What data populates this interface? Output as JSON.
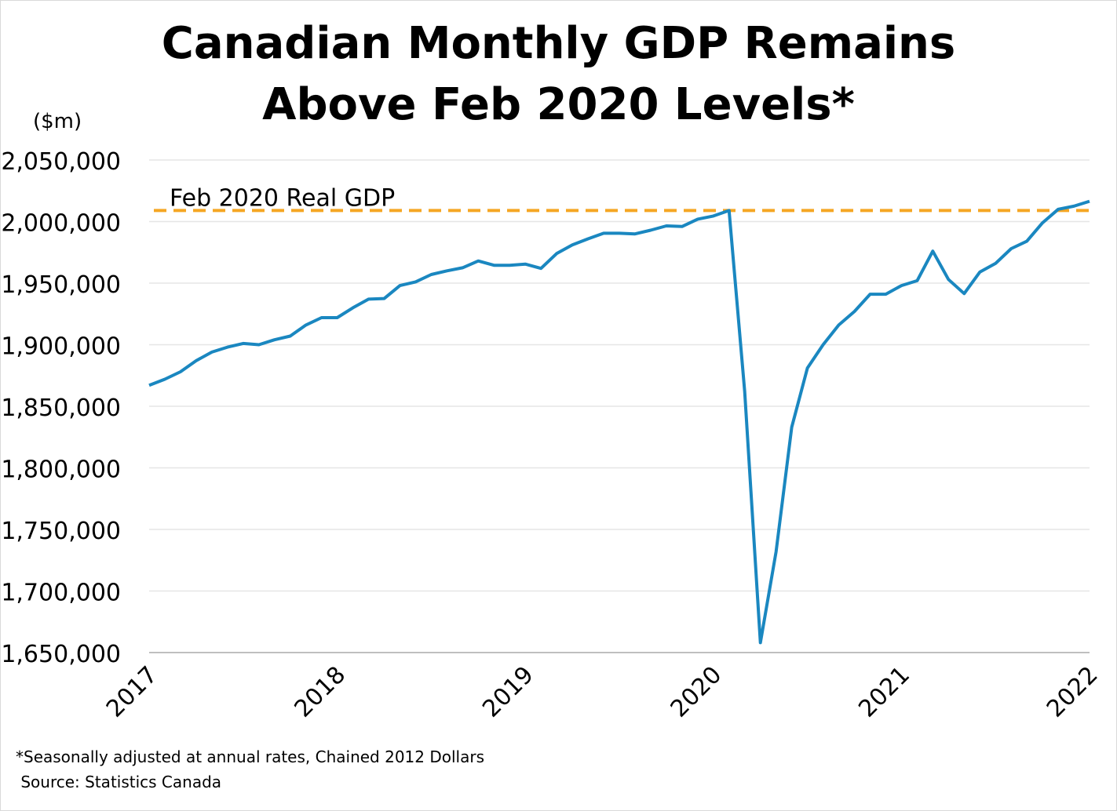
{
  "title_line1": "Canadian Monthly GDP Remains",
  "title_line2": "Above Feb 2020 Levels*",
  "unit_label": "($m)",
  "footnote_line1": "*Seasonally adjusted at annual rates, Chained 2012 Dollars",
  "footnote_line2": " Source: Statistics Canada",
  "colors": {
    "series": "#1a87c0",
    "reference": "#f5a623",
    "grid": "#e6e6e6",
    "axis": "#bfbfbf"
  },
  "chart_data": {
    "type": "line",
    "ylim": [
      1650000,
      2050000
    ],
    "y_ticks": [
      1650000,
      1700000,
      1750000,
      1800000,
      1850000,
      1900000,
      1950000,
      2000000,
      2050000
    ],
    "y_tick_labels": [
      "1,650,000",
      "1,700,000",
      "1,750,000",
      "1,800,000",
      "1,850,000",
      "1,900,000",
      "1,950,000",
      "2,000,000",
      "2,050,000"
    ],
    "x_tick_labels": [
      "2017",
      "2018",
      "2019",
      "2020",
      "2021",
      "2022"
    ],
    "x_range": [
      "2017-01",
      "2022-01"
    ],
    "grid": "horizontal",
    "reference_line": {
      "label": "Feb 2020 Real GDP",
      "value": 2009000
    },
    "series": [
      {
        "x": [
          "2017-01",
          "2017-02",
          "2017-03",
          "2017-04",
          "2017-05",
          "2017-06",
          "2017-07",
          "2017-08",
          "2017-09",
          "2017-10",
          "2017-11",
          "2017-12",
          "2018-01",
          "2018-02",
          "2018-03",
          "2018-04",
          "2018-05",
          "2018-06",
          "2018-07",
          "2018-08",
          "2018-09",
          "2018-10",
          "2018-11",
          "2018-12",
          "2019-01",
          "2019-02",
          "2019-03",
          "2019-04",
          "2019-05",
          "2019-06",
          "2019-07",
          "2019-08",
          "2019-09",
          "2019-10",
          "2019-11",
          "2019-12",
          "2020-01",
          "2020-02",
          "2020-03",
          "2020-04",
          "2020-05",
          "2020-06",
          "2020-07",
          "2020-08",
          "2020-09",
          "2020-10",
          "2020-11",
          "2020-12",
          "2021-01",
          "2021-02",
          "2021-03",
          "2021-04",
          "2021-05",
          "2021-06",
          "2021-07",
          "2021-08",
          "2021-09",
          "2021-10",
          "2021-11",
          "2021-12",
          "2022-01"
        ],
        "values": [
          1867000,
          1872000,
          1878000,
          1887000,
          1894000,
          1898000,
          1901000,
          1900000,
          1904000,
          1907000,
          1916000,
          1922000,
          1922000,
          1930000,
          1937000,
          1937500,
          1948000,
          1951000,
          1957000,
          1960000,
          1962500,
          1968000,
          1964500,
          1964500,
          1965500,
          1962000,
          1974000,
          1981000,
          1986000,
          1990500,
          1990500,
          1990000,
          1993000,
          1996500,
          1996000,
          2002000,
          2004500,
          2009000,
          1862000,
          1658000,
          1732000,
          1833000,
          1881000,
          1900000,
          1916000,
          1927000,
          1941000,
          1941000,
          1948000,
          1952000,
          1976000,
          1953000,
          1941500,
          1959000,
          1966000,
          1978000,
          1984000,
          1999000,
          2010000,
          2012500,
          2016500
        ]
      }
    ]
  }
}
